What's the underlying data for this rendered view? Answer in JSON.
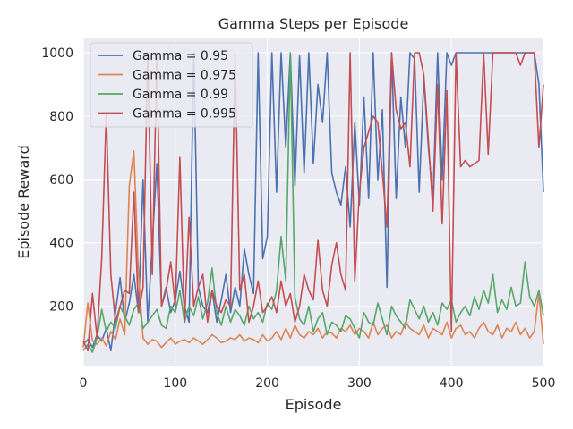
{
  "chart_data": {
    "type": "line",
    "title": "Gamma Steps per Episode",
    "xlabel": "Episode",
    "ylabel": "Episode Reward",
    "xlim": [
      0,
      500
    ],
    "ylim": [
      10,
      1045
    ],
    "x_ticks": [
      0,
      100,
      200,
      300,
      400,
      500
    ],
    "y_ticks": [
      200,
      400,
      600,
      800,
      1000
    ],
    "grid": true,
    "legend_position": "top-left",
    "background": "#eaeaf2",
    "series": [
      {
        "name": "Gamma = 0.95",
        "color": "#4c72b0",
        "x": [
          0,
          5,
          10,
          15,
          20,
          25,
          30,
          35,
          40,
          45,
          50,
          55,
          60,
          65,
          70,
          75,
          80,
          85,
          90,
          95,
          100,
          105,
          110,
          115,
          120,
          125,
          130,
          135,
          140,
          145,
          150,
          155,
          160,
          165,
          170,
          175,
          180,
          185,
          190,
          195,
          200,
          205,
          210,
          215,
          220,
          225,
          230,
          235,
          240,
          245,
          250,
          255,
          260,
          265,
          270,
          275,
          280,
          285,
          290,
          295,
          300,
          305,
          310,
          315,
          320,
          325,
          330,
          335,
          340,
          345,
          350,
          355,
          360,
          365,
          370,
          375,
          380,
          385,
          390,
          395,
          400,
          405,
          410,
          415,
          420,
          425,
          430,
          435,
          440,
          445,
          450,
          455,
          460,
          465,
          470,
          475,
          480,
          485,
          490,
          495,
          500
        ],
        "values": [
          80,
          95,
          70,
          110,
          90,
          130,
          60,
          180,
          290,
          150,
          210,
          300,
          180,
          600,
          150,
          400,
          650,
          200,
          260,
          180,
          220,
          310,
          200,
          150,
          1000,
          260,
          200,
          180,
          250,
          150,
          220,
          300,
          180,
          260,
          200,
          380,
          300,
          240,
          1000,
          350,
          420,
          1000,
          560,
          1000,
          700,
          1000,
          580,
          990,
          620,
          1000,
          650,
          900,
          780,
          1000,
          620,
          560,
          520,
          640,
          450,
          780,
          520,
          860,
          540,
          1000,
          600,
          820,
          260,
          1000,
          540,
          860,
          700,
          1000,
          980,
          560,
          920,
          700,
          540,
          1000,
          600,
          1000,
          960,
          1000,
          1000,
          1000,
          1000,
          1000,
          1000,
          1000,
          1000,
          1000,
          1000,
          1000,
          1000,
          1000,
          1000,
          1000,
          1000,
          1000,
          1000,
          900,
          560
        ]
      },
      {
        "name": "Gamma = 0.975",
        "color": "#dd8452",
        "x": [
          0,
          5,
          10,
          15,
          20,
          25,
          30,
          35,
          40,
          45,
          50,
          55,
          60,
          65,
          70,
          75,
          80,
          85,
          90,
          95,
          100,
          105,
          110,
          115,
          120,
          125,
          130,
          135,
          140,
          145,
          150,
          155,
          160,
          165,
          170,
          175,
          180,
          185,
          190,
          195,
          200,
          205,
          210,
          215,
          220,
          225,
          230,
          235,
          240,
          245,
          250,
          255,
          260,
          265,
          270,
          275,
          280,
          285,
          290,
          295,
          300,
          305,
          310,
          315,
          320,
          325,
          330,
          335,
          340,
          345,
          350,
          355,
          360,
          365,
          370,
          375,
          380,
          385,
          390,
          395,
          400,
          405,
          410,
          415,
          420,
          425,
          430,
          435,
          440,
          445,
          450,
          455,
          460,
          465,
          470,
          475,
          480,
          485,
          490,
          495,
          500
        ],
        "values": [
          70,
          210,
          90,
          80,
          100,
          75,
          120,
          95,
          160,
          110,
          580,
          690,
          300,
          100,
          80,
          95,
          90,
          70,
          85,
          100,
          80,
          90,
          95,
          85,
          100,
          90,
          80,
          95,
          110,
          100,
          85,
          90,
          100,
          95,
          110,
          90,
          100,
          95,
          85,
          110,
          90,
          100,
          120,
          95,
          130,
          100,
          140,
          110,
          100,
          120,
          110,
          130,
          100,
          120,
          115,
          100,
          130,
          120,
          140,
          110,
          130,
          120,
          100,
          150,
          110,
          130,
          140,
          100,
          120,
          110,
          150,
          130,
          120,
          110,
          140,
          100,
          130,
          120,
          110,
          150,
          100,
          130,
          140,
          110,
          120,
          100,
          130,
          150,
          120,
          110,
          140,
          100,
          130,
          120,
          150,
          110,
          130,
          100,
          120,
          240,
          80
        ]
      },
      {
        "name": "Gamma = 0.99",
        "color": "#55a868",
        "x": [
          0,
          5,
          10,
          15,
          20,
          25,
          30,
          35,
          40,
          45,
          50,
          55,
          60,
          65,
          70,
          75,
          80,
          85,
          90,
          95,
          100,
          105,
          110,
          115,
          120,
          125,
          130,
          135,
          140,
          145,
          150,
          155,
          160,
          165,
          170,
          175,
          180,
          185,
          190,
          195,
          200,
          205,
          210,
          215,
          220,
          225,
          230,
          235,
          240,
          245,
          250,
          255,
          260,
          265,
          270,
          275,
          280,
          285,
          290,
          295,
          300,
          305,
          310,
          315,
          320,
          325,
          330,
          335,
          340,
          345,
          350,
          355,
          360,
          365,
          370,
          375,
          380,
          385,
          390,
          395,
          400,
          405,
          410,
          415,
          420,
          425,
          430,
          435,
          440,
          445,
          450,
          455,
          460,
          465,
          470,
          475,
          480,
          485,
          490,
          495,
          500
        ],
        "values": [
          60,
          80,
          55,
          100,
          190,
          120,
          150,
          130,
          200,
          170,
          140,
          190,
          210,
          130,
          150,
          170,
          190,
          140,
          130,
          200,
          180,
          250,
          150,
          200,
          170,
          230,
          160,
          210,
          320,
          180,
          140,
          200,
          150,
          190,
          170,
          140,
          200,
          160,
          180,
          150,
          210,
          190,
          250,
          420,
          280,
          1000,
          230,
          160,
          140,
          200,
          120,
          160,
          180,
          110,
          150,
          140,
          120,
          170,
          160,
          130,
          100,
          180,
          150,
          140,
          210,
          160,
          110,
          200,
          170,
          150,
          130,
          220,
          190,
          160,
          200,
          150,
          180,
          140,
          210,
          190,
          220,
          150,
          180,
          200,
          170,
          230,
          190,
          250,
          210,
          300,
          180,
          220,
          190,
          260,
          200,
          210,
          340,
          230,
          200,
          250,
          170
        ]
      },
      {
        "name": "Gamma = 0.995",
        "color": "#c44e52",
        "x": [
          0,
          5,
          10,
          15,
          20,
          25,
          30,
          35,
          40,
          45,
          50,
          55,
          60,
          65,
          70,
          75,
          80,
          85,
          90,
          95,
          100,
          105,
          110,
          115,
          120,
          125,
          130,
          135,
          140,
          145,
          150,
          155,
          160,
          165,
          170,
          175,
          180,
          185,
          190,
          195,
          200,
          205,
          210,
          215,
          220,
          225,
          230,
          235,
          240,
          245,
          250,
          255,
          260,
          265,
          270,
          275,
          280,
          285,
          290,
          295,
          300,
          305,
          310,
          315,
          320,
          325,
          330,
          335,
          340,
          345,
          350,
          355,
          360,
          365,
          370,
          375,
          380,
          385,
          390,
          395,
          400,
          405,
          410,
          415,
          420,
          425,
          430,
          435,
          440,
          445,
          450,
          455,
          460,
          465,
          470,
          475,
          480,
          485,
          490,
          495,
          500
        ],
        "values": [
          90,
          60,
          240,
          100,
          350,
          810,
          300,
          150,
          200,
          250,
          240,
          560,
          180,
          260,
          1000,
          300,
          1000,
          200,
          250,
          340,
          200,
          670,
          150,
          480,
          200,
          260,
          300,
          150,
          250,
          200,
          180,
          220,
          200,
          1000,
          250,
          300,
          150,
          200,
          280,
          180,
          200,
          230,
          180,
          280,
          200,
          240,
          150,
          200,
          300,
          250,
          220,
          410,
          250,
          200,
          330,
          400,
          300,
          250,
          1000,
          280,
          560,
          700,
          750,
          800,
          780,
          620,
          450,
          1000,
          820,
          760,
          780,
          640,
          1000,
          1000,
          930,
          720,
          500,
          900,
          460,
          880,
          120,
          1000,
          640,
          660,
          640,
          650,
          660,
          1000,
          680,
          1000,
          1000,
          1000,
          1000,
          1000,
          1000,
          960,
          1000,
          1000,
          1000,
          700,
          900
        ]
      }
    ]
  }
}
